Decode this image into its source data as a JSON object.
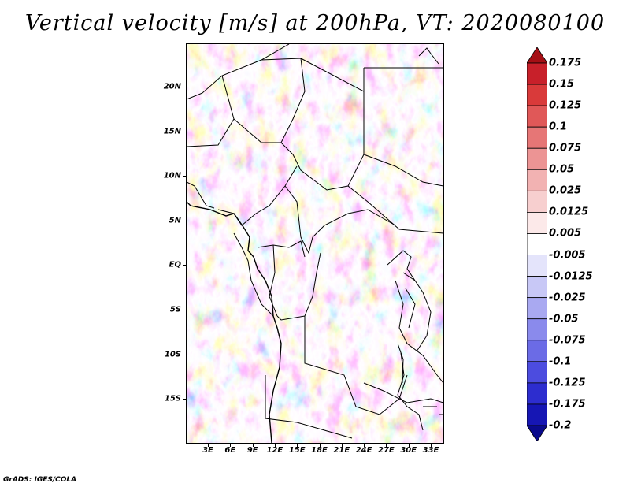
{
  "title": "Vertical velocity [m/s] at 200hPa, VT: 2020080100",
  "lat_labels": [
    "20N",
    "15N",
    "10N",
    "5N",
    "EQ",
    "5S",
    "10S",
    "15S"
  ],
  "lon_labels": [
    "3E",
    "6E",
    "9E",
    "12E",
    "15E",
    "18E",
    "21E",
    "24E",
    "27E",
    "30E",
    "33E"
  ],
  "colorbar": {
    "labels": [
      "0.175",
      "0.15",
      "0.125",
      "0.1",
      "0.075",
      "0.05",
      "0.025",
      "0.0125",
      "0.005",
      "-0.005",
      "-0.0125",
      "-0.025",
      "-0.05",
      "-0.075",
      "-0.1",
      "-0.125",
      "-0.175",
      "-0.2"
    ],
    "colors": [
      "#a50f15",
      "#c8202a",
      "#d93a3a",
      "#e05858",
      "#e67676",
      "#ec9494",
      "#f2b2b2",
      "#f7cfcf",
      "#fce9e9",
      "#ffffff",
      "#e4e4fb",
      "#c8c8f6",
      "#a9a9f1",
      "#8a8aec",
      "#6b6be6",
      "#4c4cdf",
      "#2d2dcf",
      "#1616b4",
      "#0a0a8c"
    ]
  },
  "footer": "GrADS: IGES/COLA"
}
